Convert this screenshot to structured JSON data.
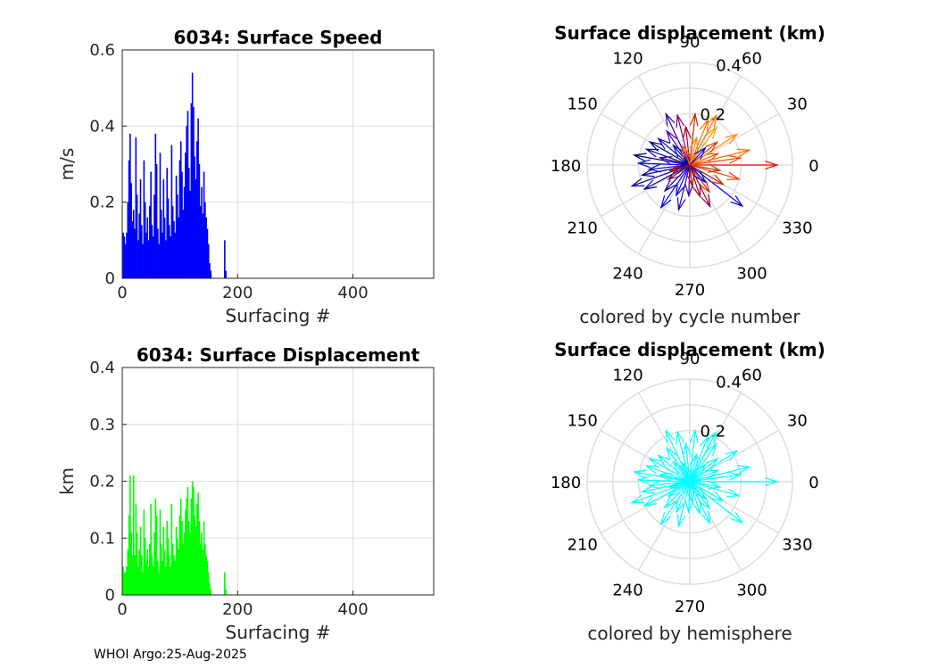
{
  "footer": "WHOI Argo:25-Aug-2025",
  "colors": {
    "speed_bars": "#0000ff",
    "disp_bars": "#00ff00",
    "hemisphere": "#00ffff",
    "grid": "#dddddd",
    "axis": "#262626"
  },
  "chart_data": [
    {
      "type": "bar",
      "title": "6034: Surface Speed",
      "xlabel": "Surfacing #",
      "ylabel": "m/s",
      "xlim": [
        0,
        540
      ],
      "ylim": [
        0,
        0.6
      ],
      "xticks": [
        "0",
        "200",
        "400"
      ],
      "xtick_values": [
        0,
        200,
        400
      ],
      "yticks": [
        "0",
        "0.2",
        "0.4",
        "0.6"
      ],
      "ytick_values": [
        0,
        0.2,
        0.4,
        0.6
      ],
      "x": [
        2,
        4,
        6,
        8,
        10,
        12,
        14,
        16,
        18,
        20,
        22,
        24,
        26,
        28,
        30,
        32,
        34,
        36,
        38,
        40,
        42,
        44,
        46,
        48,
        50,
        52,
        54,
        56,
        58,
        60,
        62,
        64,
        66,
        68,
        70,
        72,
        74,
        76,
        78,
        80,
        82,
        84,
        86,
        88,
        90,
        92,
        94,
        96,
        98,
        100,
        102,
        104,
        106,
        108,
        110,
        112,
        114,
        116,
        118,
        120,
        122,
        124,
        126,
        128,
        130,
        132,
        134,
        136,
        138,
        140,
        142,
        144,
        146,
        148,
        150,
        152,
        154,
        178,
        180
      ],
      "values": [
        0.12,
        0.11,
        0.09,
        0.12,
        0.2,
        0.31,
        0.38,
        0.25,
        0.15,
        0.18,
        0.13,
        0.37,
        0.22,
        0.1,
        0.17,
        0.26,
        0.14,
        0.09,
        0.31,
        0.2,
        0.12,
        0.16,
        0.1,
        0.19,
        0.28,
        0.14,
        0.11,
        0.22,
        0.38,
        0.3,
        0.13,
        0.09,
        0.33,
        0.18,
        0.12,
        0.26,
        0.16,
        0.1,
        0.29,
        0.21,
        0.14,
        0.11,
        0.35,
        0.19,
        0.15,
        0.12,
        0.27,
        0.22,
        0.16,
        0.31,
        0.36,
        0.28,
        0.18,
        0.24,
        0.33,
        0.4,
        0.44,
        0.29,
        0.23,
        0.46,
        0.54,
        0.45,
        0.32,
        0.26,
        0.36,
        0.42,
        0.3,
        0.19,
        0.24,
        0.17,
        0.28,
        0.2,
        0.16,
        0.13,
        0.09,
        0.04,
        0.02,
        0.1,
        0.02
      ]
    },
    {
      "type": "bar",
      "title": "6034: Surface Displacement",
      "xlabel": "Surfacing #",
      "ylabel": "km",
      "xlim": [
        0,
        540
      ],
      "ylim": [
        0,
        0.4
      ],
      "xticks": [
        "0",
        "200",
        "400"
      ],
      "xtick_values": [
        0,
        200,
        400
      ],
      "yticks": [
        "0",
        "0.1",
        "0.2",
        "0.3",
        "0.4"
      ],
      "ytick_values": [
        0,
        0.1,
        0.2,
        0.3,
        0.4
      ],
      "x": [
        2,
        4,
        6,
        8,
        10,
        12,
        14,
        16,
        18,
        20,
        22,
        24,
        26,
        28,
        30,
        32,
        34,
        36,
        38,
        40,
        42,
        44,
        46,
        48,
        50,
        52,
        54,
        56,
        58,
        60,
        62,
        64,
        66,
        68,
        70,
        72,
        74,
        76,
        78,
        80,
        82,
        84,
        86,
        88,
        90,
        92,
        94,
        96,
        98,
        100,
        102,
        104,
        106,
        108,
        110,
        112,
        114,
        116,
        118,
        120,
        122,
        124,
        126,
        128,
        130,
        132,
        134,
        136,
        138,
        140,
        142,
        144,
        146,
        148,
        150,
        152,
        154,
        178,
        180
      ],
      "values": [
        0.05,
        0.04,
        0.04,
        0.05,
        0.08,
        0.14,
        0.21,
        0.11,
        0.07,
        0.21,
        0.07,
        0.16,
        0.11,
        0.05,
        0.08,
        0.12,
        0.07,
        0.04,
        0.15,
        0.1,
        0.06,
        0.08,
        0.05,
        0.09,
        0.16,
        0.07,
        0.05,
        0.11,
        0.17,
        0.14,
        0.06,
        0.04,
        0.15,
        0.09,
        0.06,
        0.12,
        0.08,
        0.05,
        0.13,
        0.1,
        0.07,
        0.05,
        0.16,
        0.09,
        0.07,
        0.06,
        0.12,
        0.1,
        0.08,
        0.14,
        0.17,
        0.13,
        0.09,
        0.11,
        0.15,
        0.17,
        0.19,
        0.13,
        0.11,
        0.17,
        0.2,
        0.19,
        0.14,
        0.12,
        0.16,
        0.18,
        0.13,
        0.09,
        0.11,
        0.08,
        0.13,
        0.09,
        0.07,
        0.06,
        0.04,
        0.02,
        0.01,
        0.04,
        0.01
      ]
    },
    {
      "type": "polar-compass",
      "title": "Surface displacement (km)",
      "subtitle": "colored by cycle number",
      "rmax": 0.4,
      "rticks": [
        "0.2",
        "0.4"
      ],
      "rtick_values": [
        0.2,
        0.4
      ],
      "angle_labels": [
        "0",
        "30",
        "60",
        "90",
        "120",
        "150",
        "180",
        "210",
        "240",
        "270",
        "300",
        "330"
      ],
      "vectors": [
        {
          "angle": 0,
          "r": 0.34,
          "color": "#ff0000"
        },
        {
          "angle": 14,
          "r": 0.24,
          "color": "#ff6600"
        },
        {
          "angle": 33,
          "r": 0.22,
          "color": "#ff8800"
        },
        {
          "angle": 55,
          "r": 0.18,
          "color": "#ff9900"
        },
        {
          "angle": 68,
          "r": 0.19,
          "color": "#ee7700"
        },
        {
          "angle": 84,
          "r": 0.2,
          "color": "#cc2200"
        },
        {
          "angle": 104,
          "r": 0.2,
          "color": "#880066"
        },
        {
          "angle": 124,
          "r": 0.16,
          "color": "#4400aa"
        },
        {
          "angle": 140,
          "r": 0.16,
          "color": "#0000cc"
        },
        {
          "angle": 160,
          "r": 0.18,
          "color": "#000088"
        },
        {
          "angle": 178,
          "r": 0.2,
          "color": "#0000ff"
        },
        {
          "angle": 192,
          "r": 0.19,
          "color": "#0000aa"
        },
        {
          "angle": 208,
          "r": 0.2,
          "color": "#000099"
        },
        {
          "angle": 226,
          "r": 0.14,
          "color": "#1100aa"
        },
        {
          "angle": 246,
          "r": 0.13,
          "color": "#0000dd"
        },
        {
          "angle": 268,
          "r": 0.12,
          "color": "#3300aa"
        },
        {
          "angle": 288,
          "r": 0.13,
          "color": "#aa0022"
        },
        {
          "angle": 306,
          "r": 0.13,
          "color": "#cc3300"
        },
        {
          "angle": 322,
          "r": 0.26,
          "color": "#0000ee"
        },
        {
          "angle": 344,
          "r": 0.2,
          "color": "#ff4400"
        },
        {
          "angle": 8,
          "r": 0.2,
          "color": "#ee5500"
        },
        {
          "angle": 40,
          "r": 0.14,
          "color": "#dd4400"
        },
        {
          "angle": 62,
          "r": 0.22,
          "color": "#ff7700"
        },
        {
          "angle": 96,
          "r": 0.15,
          "color": "#990033"
        },
        {
          "angle": 115,
          "r": 0.22,
          "color": "#2200cc"
        },
        {
          "angle": 150,
          "r": 0.18,
          "color": "#000077"
        },
        {
          "angle": 170,
          "r": 0.22,
          "color": "#000066"
        },
        {
          "angle": 186,
          "r": 0.16,
          "color": "#0000cc"
        },
        {
          "angle": 200,
          "r": 0.24,
          "color": "#000099"
        },
        {
          "angle": 236,
          "r": 0.2,
          "color": "#0000ff"
        },
        {
          "angle": 256,
          "r": 0.18,
          "color": "#2200bb"
        },
        {
          "angle": 296,
          "r": 0.18,
          "color": "#880044"
        },
        {
          "angle": 330,
          "r": 0.15,
          "color": "#cc2200"
        },
        {
          "angle": 350,
          "r": 0.12,
          "color": "#dd3300"
        },
        {
          "angle": 22,
          "r": 0.12,
          "color": "#ff5500"
        },
        {
          "angle": 76,
          "r": 0.11,
          "color": "#ff8800"
        },
        {
          "angle": 130,
          "r": 0.1,
          "color": "#000099"
        },
        {
          "angle": 166,
          "r": 0.12,
          "color": "#3300aa"
        },
        {
          "angle": 214,
          "r": 0.1,
          "color": "#770055"
        },
        {
          "angle": 276,
          "r": 0.08,
          "color": "#bb1100"
        },
        {
          "angle": 312,
          "r": 0.09,
          "color": "#0000bb"
        },
        {
          "angle": 196,
          "r": 0.08,
          "color": "#cc0000"
        },
        {
          "angle": 48,
          "r": 0.09,
          "color": "#0000ff"
        },
        {
          "angle": 110,
          "r": 0.08,
          "color": "#ff6600"
        }
      ]
    },
    {
      "type": "polar-compass",
      "title": "Surface displacement (km)",
      "subtitle": "colored by hemisphere",
      "rmax": 0.4,
      "rticks": [
        "0.2",
        "0.4"
      ],
      "rtick_values": [
        0.2,
        0.4
      ],
      "angle_labels": [
        "0",
        "30",
        "60",
        "90",
        "120",
        "150",
        "180",
        "210",
        "240",
        "270",
        "300",
        "330"
      ],
      "series_color": "#00ffff",
      "vectors": [
        {
          "angle": 0,
          "r": 0.34
        },
        {
          "angle": 14,
          "r": 0.24
        },
        {
          "angle": 33,
          "r": 0.22
        },
        {
          "angle": 55,
          "r": 0.18
        },
        {
          "angle": 68,
          "r": 0.19
        },
        {
          "angle": 84,
          "r": 0.2
        },
        {
          "angle": 104,
          "r": 0.2
        },
        {
          "angle": 124,
          "r": 0.16
        },
        {
          "angle": 140,
          "r": 0.16
        },
        {
          "angle": 160,
          "r": 0.18
        },
        {
          "angle": 178,
          "r": 0.2
        },
        {
          "angle": 192,
          "r": 0.19
        },
        {
          "angle": 208,
          "r": 0.2
        },
        {
          "angle": 226,
          "r": 0.14
        },
        {
          "angle": 246,
          "r": 0.13
        },
        {
          "angle": 268,
          "r": 0.12
        },
        {
          "angle": 288,
          "r": 0.13
        },
        {
          "angle": 306,
          "r": 0.13
        },
        {
          "angle": 322,
          "r": 0.26
        },
        {
          "angle": 344,
          "r": 0.2
        },
        {
          "angle": 8,
          "r": 0.2
        },
        {
          "angle": 40,
          "r": 0.14
        },
        {
          "angle": 62,
          "r": 0.22
        },
        {
          "angle": 96,
          "r": 0.15
        },
        {
          "angle": 115,
          "r": 0.22
        },
        {
          "angle": 150,
          "r": 0.18
        },
        {
          "angle": 170,
          "r": 0.22
        },
        {
          "angle": 186,
          "r": 0.16
        },
        {
          "angle": 200,
          "r": 0.24
        },
        {
          "angle": 236,
          "r": 0.2
        },
        {
          "angle": 256,
          "r": 0.18
        },
        {
          "angle": 296,
          "r": 0.18
        },
        {
          "angle": 330,
          "r": 0.15
        },
        {
          "angle": 350,
          "r": 0.12
        },
        {
          "angle": 22,
          "r": 0.12
        },
        {
          "angle": 76,
          "r": 0.11
        },
        {
          "angle": 130,
          "r": 0.1
        },
        {
          "angle": 166,
          "r": 0.12
        },
        {
          "angle": 214,
          "r": 0.1
        },
        {
          "angle": 276,
          "r": 0.08
        },
        {
          "angle": 312,
          "r": 0.09
        },
        {
          "angle": 196,
          "r": 0.08
        },
        {
          "angle": 48,
          "r": 0.09
        },
        {
          "angle": 110,
          "r": 0.08
        }
      ]
    }
  ]
}
